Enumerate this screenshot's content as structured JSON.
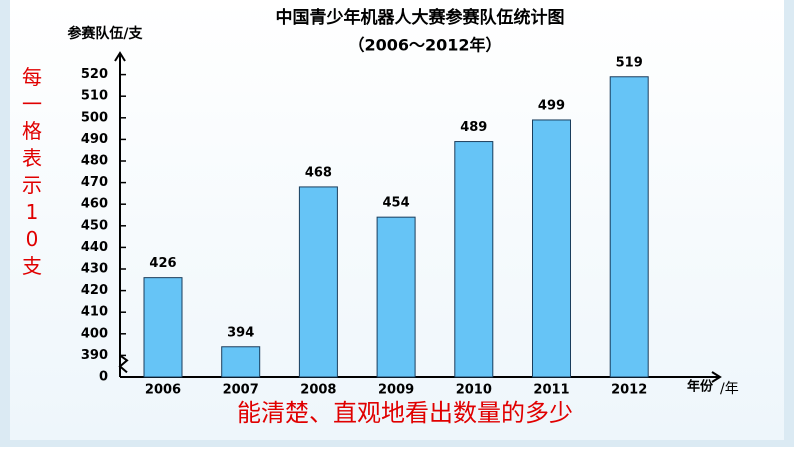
{
  "chart_data": {
    "type": "bar",
    "title": "中国青少年机器人大赛参赛队伍统计图",
    "subtitle": "（2006～2012年）",
    "y_label": "参赛队伍/支",
    "x_label": "年份",
    "x_unit": "/年",
    "side_note": "每一格表示10支",
    "caption": "能清楚、直观地看出数量的多少",
    "categories": [
      "2006",
      "2007",
      "2008",
      "2009",
      "2010",
      "2011",
      "2012"
    ],
    "values": [
      426,
      394,
      468,
      454,
      489,
      499,
      519
    ],
    "color": "#66c4f6",
    "ylim": [
      0,
      530
    ],
    "yticks": [
      0,
      390,
      400,
      410,
      420,
      430,
      440,
      450,
      460,
      470,
      480,
      490,
      500,
      510,
      520
    ],
    "axis_break": true
  }
}
